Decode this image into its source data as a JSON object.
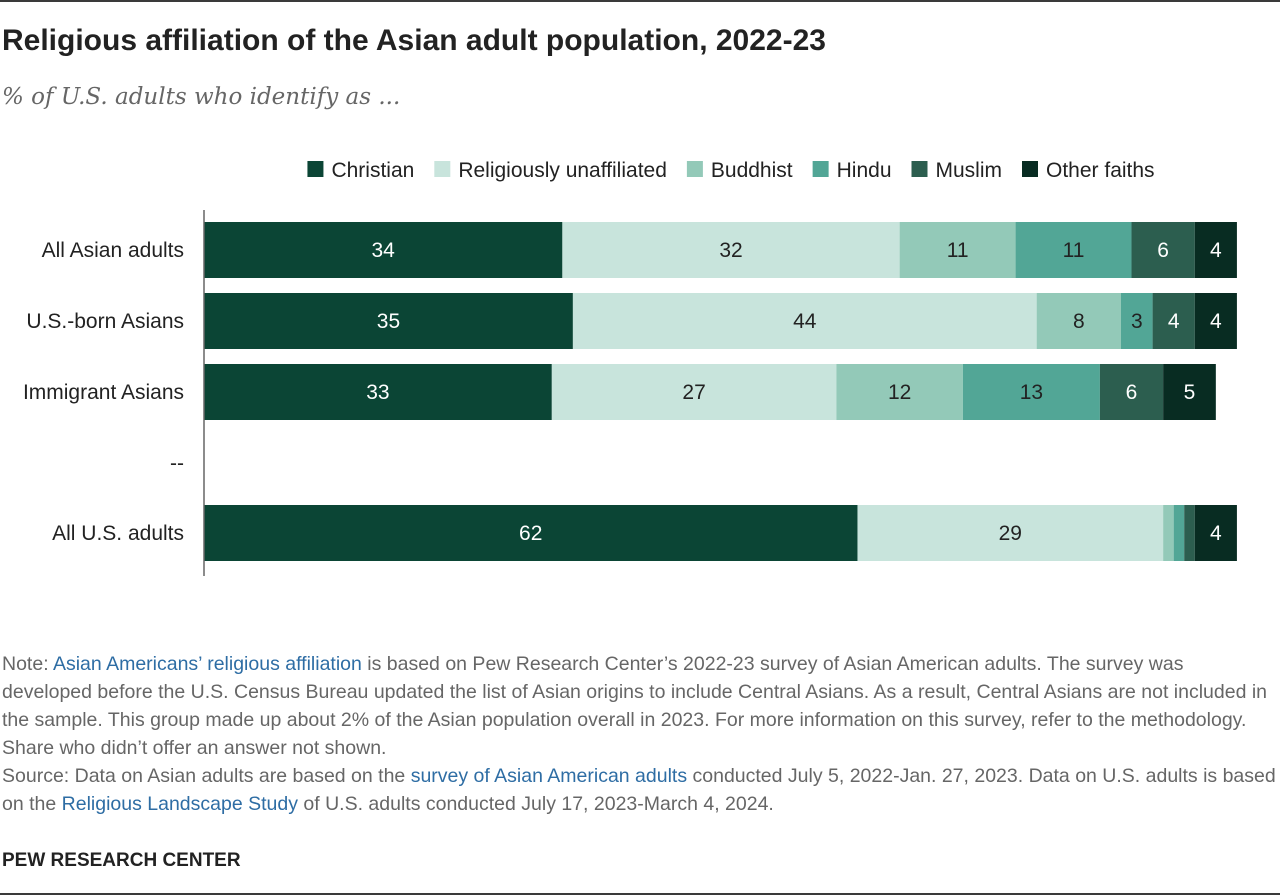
{
  "title": "Religious affiliation of the Asian adult population, 2022-23",
  "subtitle": "% of U.S. adults who identify as ...",
  "chart_data": {
    "type": "bar",
    "orientation": "horizontal",
    "stacked": true,
    "legend_position": "top",
    "grid": false,
    "xlim": [
      0,
      100
    ],
    "categories": [
      "All Asian adults",
      "U.S.-born Asians",
      "Immigrant Asians",
      "--",
      "All U.S. adults"
    ],
    "series": [
      {
        "name": "Christian",
        "color": "#0b4535",
        "label_color": "#ffffff",
        "values": [
          34,
          35,
          33,
          null,
          62
        ]
      },
      {
        "name": "Religiously unaffiliated",
        "color": "#c8e4dc",
        "label_color": "#222222",
        "values": [
          32,
          44,
          27,
          null,
          29
        ]
      },
      {
        "name": "Buddhist",
        "color": "#93c9b8",
        "label_color": "#222222",
        "values": [
          11,
          8,
          12,
          null,
          1
        ]
      },
      {
        "name": "Hindu",
        "color": "#52a696",
        "label_color": "#222222",
        "values": [
          11,
          3,
          13,
          null,
          1
        ]
      },
      {
        "name": "Muslim",
        "color": "#2c5e4f",
        "label_color": "#ffffff",
        "values": [
          6,
          4,
          6,
          null,
          1
        ]
      },
      {
        "name": "Other faiths",
        "color": "#082c22",
        "label_color": "#ffffff",
        "values": [
          4,
          4,
          5,
          null,
          4
        ]
      }
    ],
    "data_labels": [
      [
        "34",
        "32",
        "11",
        "11",
        "6",
        "4"
      ],
      [
        "35",
        "44",
        "8",
        "3",
        "4",
        "4"
      ],
      [
        "33",
        "27",
        "12",
        "13",
        "6",
        "5"
      ],
      [],
      [
        "62",
        "29",
        "",
        "",
        "",
        "4"
      ]
    ]
  },
  "note": {
    "prefix": "Note: ",
    "link1": "Asian Americans’ religious affiliation",
    "text1": " is based on Pew Research Center’s 2022-23 survey of Asian American adults. The survey was developed before the U.S. Census Bureau updated the list of Asian origins to include Central Asians. As a result, Central Asians are not included in the sample. This group made up about 2% of the Asian population overall in 2023. For more information on this survey, refer to the methodology. Share who didn’t offer an answer not shown."
  },
  "source": {
    "prefix": "Source: Data on Asian adults are based on the ",
    "link1": "survey of Asian American adults",
    "text1": " conducted July 5, 2022-Jan. 27, 2023. Data on U.S. adults is based on the ",
    "link2": "Religious Landscape Study",
    "text2": " of U.S. adults conducted July 17, 2023-March 4, 2024."
  },
  "brand": "PEW RESEARCH CENTER"
}
